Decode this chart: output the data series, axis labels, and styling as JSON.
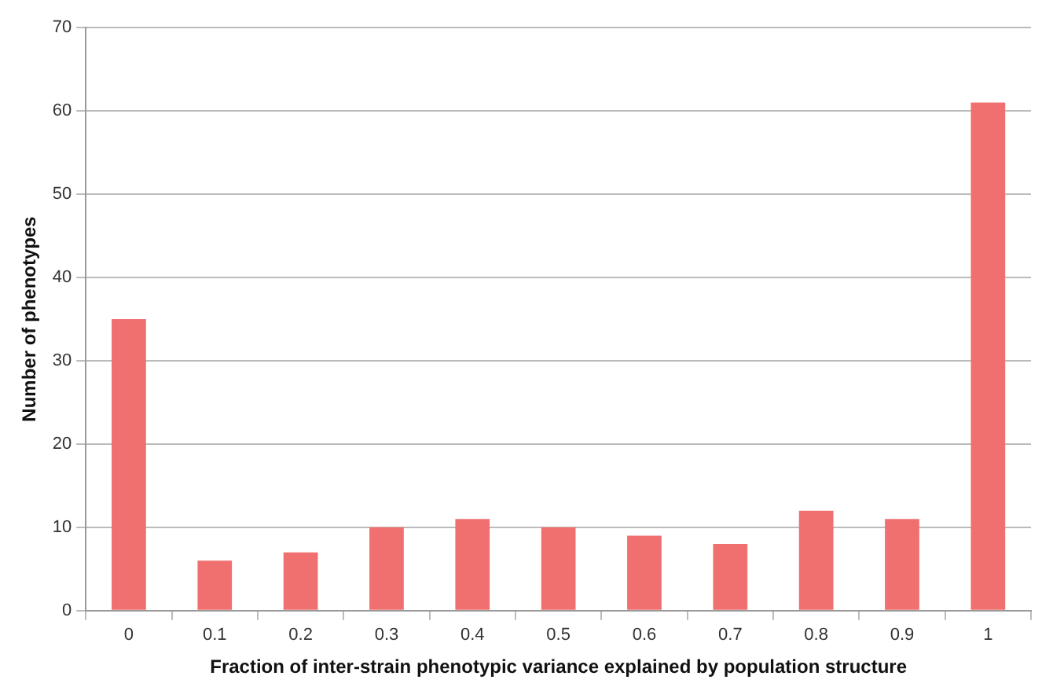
{
  "chart_data": {
    "type": "bar",
    "xlabel": "Fraction of inter-strain phenotypic variance explained by population structure",
    "ylabel": "Number of phenotypes",
    "categories": [
      "0",
      "0.1",
      "0.2",
      "0.3",
      "0.4",
      "0.5",
      "0.6",
      "0.7",
      "0.8",
      "0.9",
      "1"
    ],
    "values": [
      35,
      6,
      7,
      10,
      11,
      10,
      9,
      8,
      12,
      11,
      61
    ],
    "color": "#f07070",
    "ylim": [
      0,
      70
    ],
    "yticks": [
      0,
      10,
      20,
      30,
      40,
      50,
      60,
      70
    ],
    "grid": "y",
    "legend": false
  }
}
